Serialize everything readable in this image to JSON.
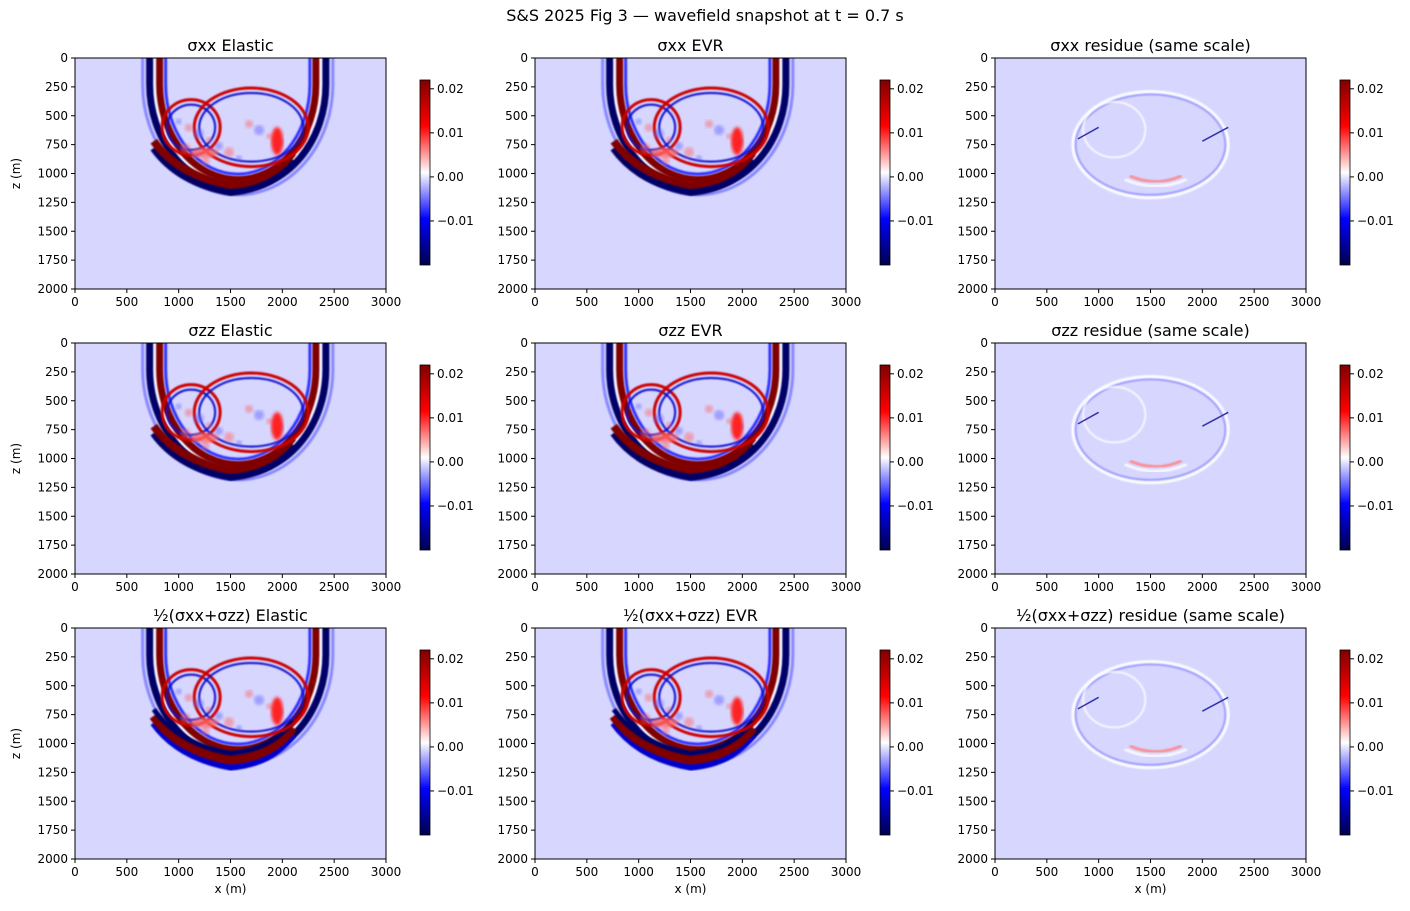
{
  "figure_title": "S&S 2025 Fig 3 — wavefield snapshot at t = 0.7 s",
  "colors": {
    "background_field": "#d6d6ff",
    "colormap": "seismic",
    "colormap_stops": [
      "#00004d",
      "#0000ff",
      "#ffffff",
      "#ff0000",
      "#800000"
    ]
  },
  "chart_data": [
    {
      "type": "heatmap",
      "component": "σxx",
      "title": "σxx  Elastic",
      "xlabel": "",
      "ylabel": "z (m)",
      "xlim": [
        0,
        3000
      ],
      "ylim": [
        2000,
        0
      ],
      "xticks": [
        0,
        500,
        1000,
        1500,
        2000,
        2500,
        3000
      ],
      "yticks": [
        0,
        250,
        500,
        750,
        1000,
        1250,
        1500,
        1750,
        2000
      ],
      "colorbar": {
        "range": [
          -0.02,
          0.022
        ],
        "ticks": [
          0.02,
          0.01,
          0.0,
          -0.01
        ],
        "tick_labels": [
          "0.02",
          "0.01",
          "0.00",
          "−0.01"
        ]
      }
    },
    {
      "type": "heatmap",
      "component": "σxx",
      "title": "σxx  EVR",
      "xlabel": "",
      "ylabel": "",
      "xlim": [
        0,
        3000
      ],
      "ylim": [
        2000,
        0
      ],
      "xticks": [
        0,
        500,
        1000,
        1500,
        2000,
        2500,
        3000
      ],
      "yticks": [
        0,
        250,
        500,
        750,
        1000,
        1250,
        1500,
        1750,
        2000
      ],
      "colorbar": {
        "range": [
          -0.02,
          0.022
        ],
        "ticks": [
          0.02,
          0.01,
          0.0,
          -0.01
        ],
        "tick_labels": [
          "0.02",
          "0.01",
          "0.00",
          "−0.01"
        ]
      }
    },
    {
      "type": "heatmap",
      "component": "σxx",
      "title": "σxx  residue (same scale)",
      "xlabel": "",
      "ylabel": "",
      "xlim": [
        0,
        3000
      ],
      "ylim": [
        2000,
        0
      ],
      "xticks": [
        0,
        500,
        1000,
        1500,
        2000,
        2500,
        3000
      ],
      "yticks": [
        0,
        250,
        500,
        750,
        1000,
        1250,
        1500,
        1750,
        2000
      ],
      "colorbar": {
        "range": [
          -0.02,
          0.022
        ],
        "ticks": [
          0.02,
          0.01,
          0.0,
          -0.01
        ],
        "tick_labels": [
          "0.02",
          "0.01",
          "0.00",
          "−0.01"
        ]
      }
    },
    {
      "type": "heatmap",
      "component": "σzz",
      "title": "σzz  Elastic",
      "xlabel": "",
      "ylabel": "z (m)",
      "xlim": [
        0,
        3000
      ],
      "ylim": [
        2000,
        0
      ],
      "xticks": [
        0,
        500,
        1000,
        1500,
        2000,
        2500,
        3000
      ],
      "yticks": [
        0,
        250,
        500,
        750,
        1000,
        1250,
        1500,
        1750,
        2000
      ],
      "colorbar": {
        "range": [
          -0.02,
          0.022
        ],
        "ticks": [
          0.02,
          0.01,
          0.0,
          -0.01
        ],
        "tick_labels": [
          "0.02",
          "0.01",
          "0.00",
          "−0.01"
        ]
      }
    },
    {
      "type": "heatmap",
      "component": "σzz",
      "title": "σzz  EVR",
      "xlabel": "",
      "ylabel": "",
      "xlim": [
        0,
        3000
      ],
      "ylim": [
        2000,
        0
      ],
      "xticks": [
        0,
        500,
        1000,
        1500,
        2000,
        2500,
        3000
      ],
      "yticks": [
        0,
        250,
        500,
        750,
        1000,
        1250,
        1500,
        1750,
        2000
      ],
      "colorbar": {
        "range": [
          -0.02,
          0.022
        ],
        "ticks": [
          0.02,
          0.01,
          0.0,
          -0.01
        ],
        "tick_labels": [
          "0.02",
          "0.01",
          "0.00",
          "−0.01"
        ]
      }
    },
    {
      "type": "heatmap",
      "component": "σzz",
      "title": "σzz  residue (same scale)",
      "xlabel": "",
      "ylabel": "",
      "xlim": [
        0,
        3000
      ],
      "ylim": [
        2000,
        0
      ],
      "xticks": [
        0,
        500,
        1000,
        1500,
        2000,
        2500,
        3000
      ],
      "yticks": [
        0,
        250,
        500,
        750,
        1000,
        1250,
        1500,
        1750,
        2000
      ],
      "colorbar": {
        "range": [
          -0.02,
          0.022
        ],
        "ticks": [
          0.02,
          0.01,
          0.0,
          -0.01
        ],
        "tick_labels": [
          "0.02",
          "0.01",
          "0.00",
          "−0.01"
        ]
      }
    },
    {
      "type": "heatmap",
      "component": "½(σxx+σzz)",
      "title": "½(σxx+σzz)  Elastic",
      "xlabel": "x (m)",
      "ylabel": "z (m)",
      "xlim": [
        0,
        3000
      ],
      "ylim": [
        2000,
        0
      ],
      "xticks": [
        0,
        500,
        1000,
        1500,
        2000,
        2500,
        3000
      ],
      "yticks": [
        0,
        250,
        500,
        750,
        1000,
        1250,
        1500,
        1750,
        2000
      ],
      "colorbar": {
        "range": [
          -0.02,
          0.022
        ],
        "ticks": [
          0.02,
          0.01,
          0.0,
          -0.01
        ],
        "tick_labels": [
          "0.02",
          "0.01",
          "0.00",
          "−0.01"
        ]
      }
    },
    {
      "type": "heatmap",
      "component": "½(σxx+σzz)",
      "title": "½(σxx+σzz)  EVR",
      "xlabel": "x (m)",
      "ylabel": "",
      "xlim": [
        0,
        3000
      ],
      "ylim": [
        2000,
        0
      ],
      "xticks": [
        0,
        500,
        1000,
        1500,
        2000,
        2500,
        3000
      ],
      "yticks": [
        0,
        250,
        500,
        750,
        1000,
        1250,
        1500,
        1750,
        2000
      ],
      "colorbar": {
        "range": [
          -0.02,
          0.022
        ],
        "ticks": [
          0.02,
          0.01,
          0.0,
          -0.01
        ],
        "tick_labels": [
          "0.02",
          "0.01",
          "0.00",
          "−0.01"
        ]
      }
    },
    {
      "type": "heatmap",
      "component": "½(σxx+σzz)",
      "title": "½(σxx+σzz)  residue (same scale)",
      "xlabel": "x (m)",
      "ylabel": "",
      "xlim": [
        0,
        3000
      ],
      "ylim": [
        2000,
        0
      ],
      "xticks": [
        0,
        500,
        1000,
        1500,
        2000,
        2500,
        3000
      ],
      "yticks": [
        0,
        250,
        500,
        750,
        1000,
        1250,
        1500,
        1750,
        2000
      ],
      "colorbar": {
        "range": [
          -0.02,
          0.022
        ],
        "ticks": [
          0.02,
          0.01,
          0.0,
          -0.01
        ],
        "tick_labels": [
          "0.02",
          "0.01",
          "0.00",
          "−0.01"
        ]
      }
    }
  ]
}
